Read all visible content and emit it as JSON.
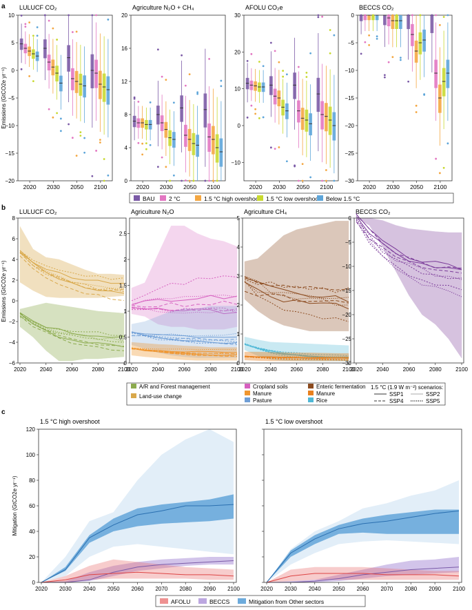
{
  "panels": {
    "a": "a",
    "b": "b",
    "c": "c"
  },
  "colors": {
    "BAU": "#7b5aa6",
    "2C": "#e377c2",
    "HO": "#f4a742",
    "LO": "#c8d930",
    "B15": "#5da5d9",
    "ar": "#8cab4e",
    "luc": "#d9a84a",
    "crop": "#d65fbf",
    "manure_n2o": "#f0962f",
    "pasture": "#6f9ed6",
    "enteric": "#8b4a1e",
    "manure_ch4": "#e8801e",
    "rice": "#4fb8d6",
    "beccs_b": "#7a3a99",
    "afolu": "#e86c6c",
    "beccs": "#a68ad6",
    "other": "#3c8fd0"
  },
  "panel_a": {
    "ylabel": "Emissions  (GtCO2e yr⁻¹)",
    "years": [
      "2020",
      "2030",
      "2050",
      "2100"
    ],
    "scenarios": [
      "BAU",
      "2 °C",
      "1.5 °C high overshoot",
      "1.5 °C low overshoot",
      "Below 1.5 °C"
    ],
    "scenario_keys": [
      "BAU",
      "2C",
      "HO",
      "LO",
      "B15"
    ],
    "subplots": [
      {
        "title": "LULUCF CO₂",
        "ylim": [
          -20,
          10
        ],
        "yticks": [
          "10",
          "5",
          "0",
          "−5",
          "−10",
          "−15",
          "−20"
        ],
        "tickvals": [
          10,
          5,
          0,
          -5,
          -10,
          -15,
          -20
        ],
        "medians": [
          [
            4.8,
            4,
            3.5,
            3,
            2.6
          ],
          [
            4,
            1.5,
            0.6,
            -0.5,
            -2.3
          ],
          [
            2.3,
            -1.5,
            -2,
            -2.5,
            -2.8
          ],
          [
            0,
            -0.5,
            -2.5,
            -3,
            -3.5
          ]
        ]
      },
      {
        "title": "Agriculture N₂O + CH₄",
        "ylim": [
          0,
          20
        ],
        "yticks": [
          "20",
          "16",
          "12",
          "8",
          "4",
          "0"
        ],
        "tickvals": [
          20,
          16,
          12,
          8,
          4,
          0
        ],
        "medians": [
          [
            7.2,
            7,
            7,
            6.8,
            6.8
          ],
          [
            8,
            7,
            6.2,
            5.2,
            5
          ],
          [
            8.8,
            5.5,
            5,
            4.5,
            4.3
          ],
          [
            8.6,
            5.3,
            5,
            4,
            3.5
          ]
        ]
      },
      {
        "title": "AFOLU CO₂e",
        "ylim": [
          -15,
          30
        ],
        "yticks": [
          "30",
          "20",
          "10",
          "0",
          "−10"
        ],
        "tickvals": [
          30,
          20,
          10,
          0,
          -10
        ],
        "medians": [
          [
            11.5,
            11,
            10.8,
            10.5,
            10.5
          ],
          [
            11,
            8,
            7.5,
            5,
            4
          ],
          [
            11,
            4,
            2,
            1.5,
            0.5
          ],
          [
            8.6,
            3,
            2.5,
            1.5,
            0
          ]
        ]
      },
      {
        "title": "BECCS CO₂",
        "ylim": [
          -30,
          0
        ],
        "yticks": [
          "0",
          "−5",
          "−10",
          "−15",
          "−20",
          "−25",
          "−30"
        ],
        "tickvals": [
          0,
          -5,
          -10,
          -15,
          -20,
          -25,
          -30
        ],
        "medians": [
          [
            0,
            0,
            0,
            0,
            0
          ],
          [
            0,
            -0.5,
            -1,
            -1,
            -1
          ],
          [
            0,
            -3.5,
            -6.5,
            -5,
            -4.5
          ],
          [
            0,
            -10.5,
            -15,
            -12,
            -10.5
          ]
        ]
      }
    ]
  },
  "panel_b": {
    "ylabel": "Emissions  (GtCO2e yr⁻¹)",
    "xticks": [
      "2020",
      "2040",
      "2060",
      "2080",
      "2100"
    ],
    "subplots": [
      {
        "title": "LULUCF CO₂",
        "ylim": [
          -6,
          8
        ],
        "yticks": [
          "8",
          "6",
          "4",
          "2",
          "0",
          "−2",
          "−4",
          "−6"
        ],
        "tickvals": [
          8,
          6,
          4,
          2,
          0,
          -2,
          -4,
          -6
        ]
      },
      {
        "title": "Agriculture N₂O",
        "ylim": [
          0,
          2.8
        ],
        "yticks": [
          "2.5",
          "2",
          "1.5",
          "1",
          "0.5",
          "0"
        ],
        "tickvals": [
          2.5,
          2,
          1.5,
          1,
          0.5,
          0
        ]
      },
      {
        "title": "Agriculture CH₄",
        "ylim": [
          0,
          5
        ],
        "yticks": [
          "5",
          "4",
          "3",
          "2",
          "1",
          "0"
        ],
        "tickvals": [
          5,
          4,
          3,
          2,
          1,
          0
        ]
      },
      {
        "title": "BECCS CO₂",
        "ylim": [
          -30,
          0
        ],
        "yticks": [
          "0",
          "−5",
          "−10",
          "−15",
          "−20",
          "−25",
          "−30"
        ],
        "tickvals": [
          0,
          -5,
          -10,
          -15,
          -20,
          -25,
          -30
        ]
      }
    ],
    "legend": {
      "ar": "A/R and Forest management",
      "luc": "Land-use change",
      "crop": "Cropland soils",
      "manure1": "Manure",
      "pasture": "Pasture",
      "enteric": "Enteric fermentation",
      "manure2": "Manure",
      "rice": "Rice",
      "scen_title": "1.5 °C (1.9 W m⁻²) scenarios:",
      "ssp1": "SSP1",
      "ssp2": "SSP2",
      "ssp4": "SSP4",
      "ssp5": "SSP5"
    }
  },
  "panel_c": {
    "ylabel": "Mitigation (GtCO2e yr⁻¹)",
    "xticks": [
      "2020",
      "2030",
      "2040",
      "2050",
      "2060",
      "2070",
      "2080",
      "2090",
      "2100"
    ],
    "yticks": [
      "120",
      "100",
      "80",
      "60",
      "40",
      "20",
      "0"
    ],
    "tickvals": [
      120,
      100,
      80,
      60,
      40,
      20,
      0
    ],
    "ylim": [
      0,
      120
    ],
    "subplots": [
      {
        "title": "1.5 °C high overshoot",
        "other_mid": [
          0,
          10,
          35,
          45,
          53,
          56,
          60,
          60,
          61
        ],
        "other_iqr_lo": [
          0,
          9,
          31,
          40,
          44,
          46,
          47,
          48,
          50
        ],
        "other_iqr_hi": [
          0,
          12,
          37,
          50,
          58,
          61,
          63,
          65,
          69
        ],
        "other_range_lo": [
          0,
          5,
          20,
          28,
          30,
          28,
          26,
          24,
          22
        ],
        "other_range_hi": [
          0,
          20,
          48,
          55,
          80,
          100,
          112,
          120,
          110
        ],
        "afolu_mid": [
          0,
          2,
          6,
          7,
          8,
          7,
          6,
          6,
          5
        ],
        "afolu_lo": [
          0,
          0,
          2,
          3,
          3,
          3,
          3,
          2,
          2
        ],
        "afolu_hi": [
          0,
          5,
          13,
          18,
          16,
          14,
          12,
          11,
          10
        ],
        "beccs_mid": [
          0,
          0,
          2,
          8,
          12,
          14,
          15,
          16,
          17
        ],
        "beccs_lo": [
          0,
          0,
          1,
          5,
          9,
          11,
          13,
          14,
          14
        ],
        "beccs_hi": [
          0,
          1,
          8,
          13,
          16,
          18,
          19,
          20,
          20
        ]
      },
      {
        "title": "1.5 °C low overshoot",
        "other_mid": [
          0,
          23,
          34,
          42,
          46,
          48,
          51,
          54,
          56
        ],
        "other_iqr_lo": [
          0,
          20,
          30,
          38,
          39,
          38,
          38,
          38,
          38
        ],
        "other_iqr_hi": [
          0,
          25,
          37,
          45,
          50,
          53,
          55,
          57,
          57
        ],
        "other_range_lo": [
          0,
          14,
          23,
          30,
          32,
          33,
          32,
          31,
          30
        ],
        "other_range_hi": [
          0,
          26,
          40,
          48,
          58,
          62,
          68,
          72,
          80
        ],
        "afolu_mid": [
          0,
          5,
          7,
          7,
          7,
          6,
          6,
          6,
          5
        ],
        "afolu_lo": [
          0,
          1,
          2,
          2,
          2,
          2,
          2,
          2,
          2
        ],
        "afolu_hi": [
          0,
          10,
          12,
          12,
          12,
          11,
          10,
          9,
          9
        ],
        "beccs_mid": [
          0,
          0,
          1,
          3,
          6,
          8,
          10,
          11,
          12
        ],
        "beccs_lo": [
          0,
          0,
          0,
          1,
          3,
          5,
          6,
          7,
          8
        ],
        "beccs_hi": [
          0,
          1,
          2,
          6,
          10,
          14,
          17,
          18,
          20
        ]
      }
    ],
    "legend": {
      "afolu": "AFOLU",
      "beccs": "BECCS",
      "other": "Mitigation from Other sectors"
    }
  },
  "chart_data": [
    {
      "type": "box",
      "title": "LULUCF CO₂",
      "categories": [
        "2020",
        "2030",
        "2050",
        "2100"
      ],
      "series": [
        "BAU",
        "2 °C",
        "1.5 °C high overshoot",
        "1.5 °C low overshoot",
        "Below 1.5 °C"
      ]
    },
    {
      "type": "line",
      "title": "Agriculture N₂O"
    },
    {
      "type": "area",
      "title": "1.5 °C high overshoot",
      "x": [
        2020,
        2030,
        2040,
        2050,
        2060,
        2070,
        2080,
        2090,
        2100
      ]
    }
  ]
}
